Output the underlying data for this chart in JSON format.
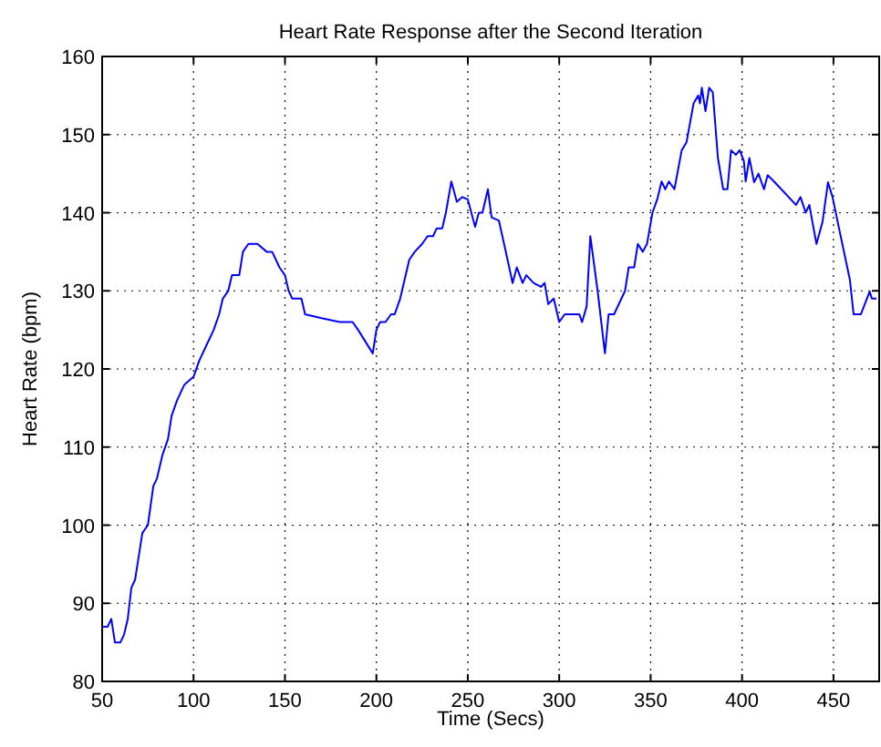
{
  "chart_data": {
    "type": "line",
    "title": "Heart Rate Response after the Second Iteration",
    "xlabel": "Time (Secs)",
    "ylabel": "Heart Rate (bpm)",
    "xlim": [
      50,
      475
    ],
    "ylim": [
      80,
      160
    ],
    "xticks": [
      50,
      100,
      150,
      200,
      250,
      300,
      350,
      400,
      450
    ],
    "yticks": [
      80,
      90,
      100,
      110,
      120,
      130,
      140,
      150,
      160
    ],
    "grid": true,
    "line_style": "solid",
    "series": [
      {
        "color": "#0000ff",
        "x": [
          50,
          53,
          55,
          57,
          60,
          62,
          64,
          66,
          68,
          70,
          72,
          75,
          78,
          80,
          83,
          86,
          88,
          91,
          95,
          100,
          103,
          107,
          111,
          114,
          116,
          119,
          121,
          125,
          127,
          130,
          135,
          140,
          143,
          147,
          150,
          152,
          154,
          159,
          161,
          170,
          180,
          187,
          190,
          198,
          200,
          202,
          205,
          208,
          210,
          213,
          215,
          218,
          221,
          225,
          228,
          231,
          233,
          236,
          238,
          241,
          244,
          247,
          250,
          254,
          256,
          258,
          261,
          263,
          267,
          270.5,
          274.5,
          276.8,
          280,
          282,
          286,
          290,
          292,
          294,
          297,
          300,
          303,
          311,
          312.5,
          315,
          317,
          321,
          325,
          327,
          330,
          336,
          338,
          341,
          343,
          345.7,
          348,
          351,
          353.6,
          356,
          358,
          360,
          363,
          367,
          369.6,
          373.5,
          376,
          377,
          378,
          380,
          382,
          384,
          386.8,
          389.7,
          392,
          394,
          396.6,
          398.7,
          401,
          402,
          404,
          406.6,
          409,
          412,
          414,
          417.5,
          429.5,
          432,
          434.8,
          436.8,
          440.7,
          444,
          447,
          449.5,
          453.4,
          459,
          461,
          465,
          469.8,
          471,
          473.5
        ],
        "values": [
          87,
          87,
          88,
          85,
          85,
          86,
          88,
          92,
          93,
          96,
          99,
          100,
          105,
          106,
          109,
          111,
          114,
          116,
          118,
          119,
          121,
          123,
          125,
          127,
          129,
          130,
          132,
          132,
          135,
          136,
          136,
          135,
          135,
          133,
          132,
          130,
          129,
          129,
          127,
          126.5,
          126,
          126,
          125,
          122,
          125,
          126,
          126,
          127,
          127,
          129,
          131,
          134,
          135,
          136,
          137,
          137,
          138,
          138,
          140,
          144,
          141.4,
          142,
          141.7,
          138.2,
          140,
          140,
          143,
          139.4,
          139,
          135.3,
          131,
          133,
          131,
          132,
          131,
          130.5,
          131,
          128.3,
          129,
          126,
          127,
          127,
          126,
          128,
          137,
          130,
          122,
          127,
          127,
          130,
          133,
          133,
          136,
          135,
          136,
          140,
          141.7,
          144,
          143,
          144,
          143,
          148,
          149,
          154,
          155,
          154,
          156,
          153,
          156,
          155.4,
          147,
          143,
          143,
          148,
          147.4,
          148,
          146.6,
          144,
          147,
          143.9,
          145,
          143,
          144.8,
          144,
          141,
          142,
          140,
          141,
          136,
          138.8,
          143.9,
          142,
          137.6,
          131.4,
          127,
          127,
          129.9,
          129,
          129
        ]
      }
    ]
  }
}
